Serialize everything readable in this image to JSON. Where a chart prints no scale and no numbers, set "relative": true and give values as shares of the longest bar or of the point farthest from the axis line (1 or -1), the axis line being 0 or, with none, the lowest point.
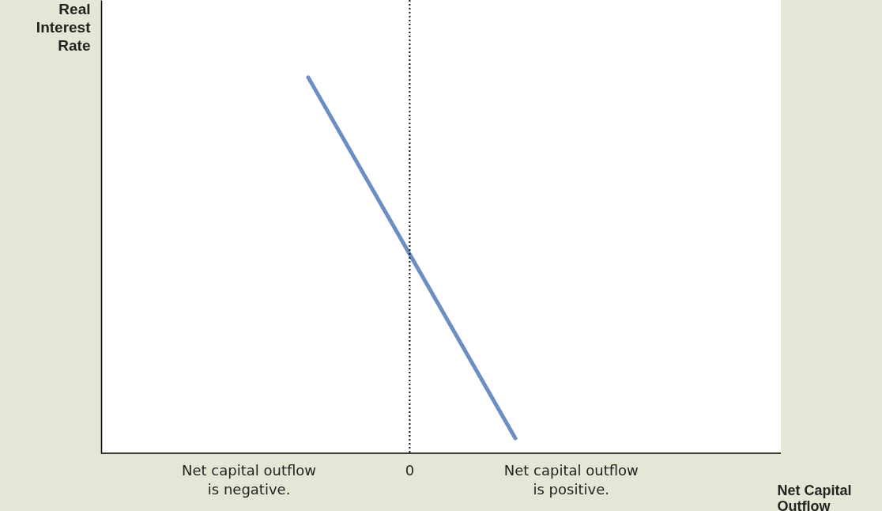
{
  "chart_data": {
    "type": "line",
    "relative": true,
    "ylabel": "Real\nInterest\nRate",
    "xlabel": "Net Capital\nOutflow",
    "categories": [
      null,
      null,
      null,
      null
    ],
    "series": [
      {
        "color": "#6b8ec4",
        "values": [
          null,
          1,
          0.04,
          null
        ]
      }
    ],
    "annotations": [
      "Net capital outflow\nis negative.",
      "0",
      "Net capital outflow\nis positive."
    ],
    "grid": false
  }
}
